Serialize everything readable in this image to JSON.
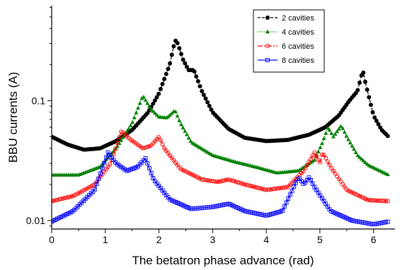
{
  "chart_data": {
    "type": "line",
    "xlabel": "The betatron phase advance (rad)",
    "ylabel": "BBU currents (A)",
    "xlim": [
      0,
      6.4
    ],
    "ylim": [
      0.0085,
      0.62
    ],
    "yscale": "log",
    "x_ticks": [
      0,
      1,
      2,
      3,
      4,
      5,
      6
    ],
    "x_tick_labels": [
      "0",
      "1",
      "2",
      "3",
      "4",
      "5",
      "6"
    ],
    "y_ticks": [
      0.01,
      0.1
    ],
    "y_tick_labels": [
      "0.01",
      "0.1"
    ],
    "legend_position": "top-right",
    "grid": false,
    "series": [
      {
        "name": "2 cavities",
        "color": "#000000",
        "marker": "circle-filled",
        "line_style": "dashed",
        "points": [
          [
            0,
            0.05
          ],
          [
            0.3,
            0.043
          ],
          [
            0.6,
            0.039
          ],
          [
            0.9,
            0.04
          ],
          [
            1.2,
            0.046
          ],
          [
            1.5,
            0.057
          ],
          [
            1.8,
            0.08
          ],
          [
            2.0,
            0.115
          ],
          [
            2.2,
            0.2
          ],
          [
            2.3,
            0.32
          ],
          [
            2.35,
            0.3
          ],
          [
            2.45,
            0.22
          ],
          [
            2.55,
            0.18
          ],
          [
            2.65,
            0.18
          ],
          [
            2.8,
            0.12
          ],
          [
            3.0,
            0.08
          ],
          [
            3.3,
            0.058
          ],
          [
            3.6,
            0.049
          ],
          [
            4.0,
            0.046
          ],
          [
            4.4,
            0.047
          ],
          [
            4.8,
            0.052
          ],
          [
            5.1,
            0.06
          ],
          [
            5.35,
            0.075
          ],
          [
            5.55,
            0.1
          ],
          [
            5.7,
            0.12
          ],
          [
            5.8,
            0.18
          ],
          [
            5.85,
            0.14
          ],
          [
            6.0,
            0.075
          ],
          [
            6.15,
            0.057
          ],
          [
            6.28,
            0.05
          ]
        ]
      },
      {
        "name": "4 cavities",
        "color": "#008000",
        "marker": "triangle",
        "line_style": "dotted",
        "points": [
          [
            0,
            0.024
          ],
          [
            0.5,
            0.024
          ],
          [
            0.9,
            0.028
          ],
          [
            1.2,
            0.04
          ],
          [
            1.5,
            0.065
          ],
          [
            1.7,
            0.11
          ],
          [
            1.85,
            0.085
          ],
          [
            2.0,
            0.073
          ],
          [
            2.15,
            0.072
          ],
          [
            2.3,
            0.083
          ],
          [
            2.4,
            0.065
          ],
          [
            2.6,
            0.045
          ],
          [
            3.0,
            0.035
          ],
          [
            3.4,
            0.031
          ],
          [
            3.8,
            0.028
          ],
          [
            4.2,
            0.025
          ],
          [
            4.6,
            0.026
          ],
          [
            4.9,
            0.032
          ],
          [
            5.05,
            0.045
          ],
          [
            5.15,
            0.06
          ],
          [
            5.25,
            0.05
          ],
          [
            5.4,
            0.062
          ],
          [
            5.5,
            0.05
          ],
          [
            5.7,
            0.035
          ],
          [
            5.9,
            0.029
          ],
          [
            6.28,
            0.024
          ]
        ]
      },
      {
        "name": "6 cavities",
        "color": "#ff0000",
        "marker": "circle-open",
        "line_style": "dashdot",
        "points": [
          [
            0,
            0.0145
          ],
          [
            0.4,
            0.016
          ],
          [
            0.8,
            0.02
          ],
          [
            1.1,
            0.03
          ],
          [
            1.3,
            0.056
          ],
          [
            1.45,
            0.048
          ],
          [
            1.7,
            0.04
          ],
          [
            1.85,
            0.042
          ],
          [
            2.0,
            0.05
          ],
          [
            2.1,
            0.04
          ],
          [
            2.4,
            0.027
          ],
          [
            2.8,
            0.022
          ],
          [
            3.1,
            0.021
          ],
          [
            3.3,
            0.022
          ],
          [
            3.6,
            0.02
          ],
          [
            4.0,
            0.018
          ],
          [
            4.4,
            0.019
          ],
          [
            4.7,
            0.026
          ],
          [
            4.9,
            0.037
          ],
          [
            5.0,
            0.03
          ],
          [
            5.05,
            0.037
          ],
          [
            5.2,
            0.028
          ],
          [
            5.5,
            0.018
          ],
          [
            5.9,
            0.0148
          ],
          [
            6.28,
            0.0145
          ]
        ]
      },
      {
        "name": "8 cavities",
        "color": "#0000ff",
        "marker": "square-open",
        "line_style": "solid",
        "points": [
          [
            0,
            0.0098
          ],
          [
            0.4,
            0.012
          ],
          [
            0.8,
            0.018
          ],
          [
            1.05,
            0.037
          ],
          [
            1.2,
            0.03
          ],
          [
            1.4,
            0.026
          ],
          [
            1.6,
            0.028
          ],
          [
            1.75,
            0.033
          ],
          [
            1.9,
            0.022
          ],
          [
            2.2,
            0.015
          ],
          [
            2.6,
            0.0125
          ],
          [
            3.0,
            0.013
          ],
          [
            3.3,
            0.0138
          ],
          [
            3.6,
            0.012
          ],
          [
            4.0,
            0.011
          ],
          [
            4.3,
            0.012
          ],
          [
            4.6,
            0.023
          ],
          [
            4.7,
            0.02
          ],
          [
            4.8,
            0.023
          ],
          [
            4.9,
            0.019
          ],
          [
            5.2,
            0.012
          ],
          [
            5.6,
            0.01
          ],
          [
            6.0,
            0.0093
          ],
          [
            6.28,
            0.0098
          ]
        ]
      }
    ]
  }
}
